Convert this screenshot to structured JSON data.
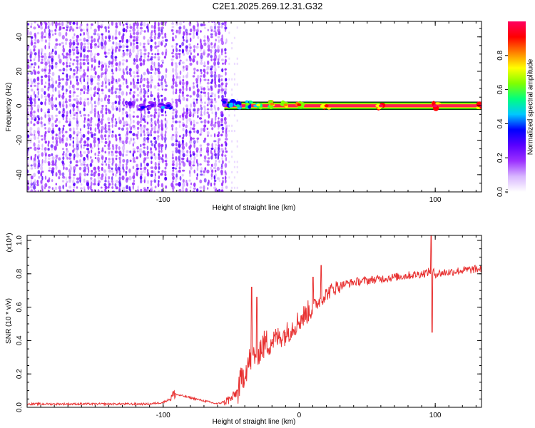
{
  "figure_title": "C2E1.2025.269.12.31.G32",
  "chart_data": [
    {
      "type": "heatmap",
      "title": "",
      "xlabel": "Height of straight line (km)",
      "ylabel": "Frequency (Hz)",
      "xlim": [
        -200,
        134
      ],
      "ylim": [
        -50,
        49
      ],
      "x_ticks": [
        -100,
        0,
        100
      ],
      "x_tick_labels": [
        "-100",
        "",
        "100"
      ],
      "y_ticks": [
        -40,
        -20,
        0,
        20,
        40
      ],
      "y_tick_labels": [
        "-40",
        "-20",
        "0",
        "20",
        "40"
      ],
      "colorbar": {
        "label": "Normalized spectral amplitude",
        "range": [
          0,
          1
        ],
        "ticks": [
          0.0,
          0.2,
          0.4,
          0.6,
          0.8
        ],
        "tick_labels": [
          "0.0",
          "0.2",
          "0.4",
          "0.6",
          "0.8"
        ],
        "colors": [
          "#ffffff",
          "#d8b6ff",
          "#9b30ff",
          "#5a00ff",
          "#0000ff",
          "#00c8ff",
          "#00ff80",
          "#80ff00",
          "#ffff00",
          "#ff8000",
          "#ff0000",
          "#ff0060"
        ]
      },
      "noise_region_x": [
        -200,
        -52
      ],
      "noise_gap_x": [
        -98,
        -94
      ],
      "carrier_frequency_hz": 0,
      "carrier_ridge": [
        {
          "x": -124,
          "y": 1,
          "amp": 0.3
        },
        {
          "x": -115,
          "y": -1,
          "amp": 0.35
        },
        {
          "x": -108,
          "y": 0.5,
          "amp": 0.3
        },
        {
          "x": -100,
          "y": -1,
          "amp": 0.45
        },
        {
          "x": -96,
          "y": 0,
          "amp": 0.4
        },
        {
          "x": -55,
          "y": 2,
          "amp": 0.35
        },
        {
          "x": -50,
          "y": 1,
          "amp": 0.45
        },
        {
          "x": -45,
          "y": 0,
          "amp": 0.5
        },
        {
          "x": -38,
          "y": 1,
          "amp": 0.6
        },
        {
          "x": -30,
          "y": 0.5,
          "amp": 0.7
        },
        {
          "x": -20,
          "y": 1,
          "amp": 0.8
        },
        {
          "x": -10,
          "y": 0.5,
          "amp": 0.85
        },
        {
          "x": 0,
          "y": 0.5,
          "amp": 0.9
        },
        {
          "x": 20,
          "y": 0,
          "amp": 0.95
        },
        {
          "x": 60,
          "y": 0,
          "amp": 0.97
        },
        {
          "x": 100,
          "y": 0,
          "amp": 0.97
        },
        {
          "x": 134,
          "y": 0,
          "amp": 0.97
        }
      ]
    },
    {
      "type": "line",
      "title": "",
      "xlabel": "Height of straight line (km)",
      "ylabel": "SNR (10 * v/v)",
      "y_multiplier_label": "(x10⁴)",
      "xlim": [
        -200,
        134
      ],
      "ylim": [
        0,
        1.03
      ],
      "x_ticks": [
        -100,
        0,
        100
      ],
      "x_tick_labels": [
        "-100",
        "0",
        "100"
      ],
      "y_ticks": [
        0.0,
        0.2,
        0.4,
        0.6,
        0.8,
        1.0
      ],
      "y_tick_labels": [
        "0.0",
        "0.2",
        "0.4",
        "0.6",
        "0.8",
        "1.0"
      ],
      "series_color": "#e83030",
      "x": [
        -200,
        -150,
        -110,
        -100,
        -95,
        -92,
        -60,
        -50,
        -45,
        -40,
        -35,
        -30,
        -25,
        -20,
        -15,
        -10,
        -5,
        0,
        5,
        10,
        15,
        20,
        25,
        30,
        40,
        50,
        60,
        70,
        80,
        90,
        95,
        97,
        100,
        110,
        120,
        134
      ],
      "values": [
        0.02,
        0.02,
        0.02,
        0.03,
        0.05,
        0.08,
        0.02,
        0.05,
        0.1,
        0.22,
        0.3,
        0.34,
        0.38,
        0.4,
        0.42,
        0.44,
        0.48,
        0.52,
        0.56,
        0.6,
        0.64,
        0.68,
        0.71,
        0.73,
        0.75,
        0.76,
        0.77,
        0.78,
        0.79,
        0.8,
        0.81,
        0.82,
        0.8,
        0.81,
        0.82,
        0.83
      ],
      "spikes": [
        {
          "x": -35,
          "value": 0.72
        },
        {
          "x": -31,
          "value": 0.66
        },
        {
          "x": 10,
          "value": 0.78
        },
        {
          "x": 16,
          "value": 0.85
        },
        {
          "x": 97,
          "value": 1.03
        },
        {
          "x": 97.5,
          "value": 0.45
        }
      ]
    }
  ]
}
